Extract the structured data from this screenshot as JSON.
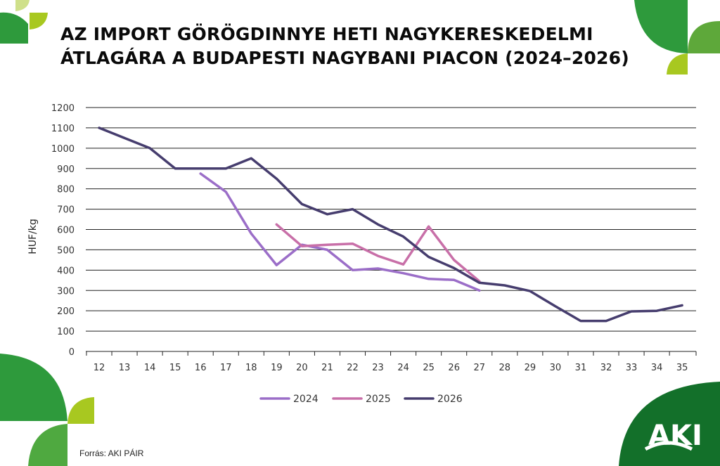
{
  "title_lines": [
    "AZ IMPORT GÖRÖGDINNYE HETI NAGYKERESKEDELMI",
    "ÁTLAGÁRA A BUDAPESTI NAGYBANI PIACON (2024–2026)"
  ],
  "source": "Forrás: AKI PÁIR",
  "logo_text": "AKI",
  "colors": {
    "dark_green": "#13702a",
    "green": "#2e9a3c",
    "mid_green": "#4fa940",
    "lime": "#a8c820",
    "grid": "#222222"
  },
  "chart_data": {
    "type": "line",
    "xlabel": "",
    "ylabel": "HUF/kg",
    "ylim": [
      0,
      1200
    ],
    "yticks": [
      0,
      100,
      200,
      300,
      400,
      500,
      600,
      700,
      800,
      900,
      1000,
      1100,
      1200
    ],
    "categories": [
      "12",
      "13",
      "14",
      "15",
      "16",
      "17",
      "18",
      "19",
      "20",
      "21",
      "22",
      "23",
      "24",
      "25",
      "26",
      "27",
      "28",
      "29",
      "30",
      "31",
      "32",
      "33",
      "34",
      "35"
    ],
    "grid": true,
    "legend_position": "bottom",
    "series": [
      {
        "name": "2024",
        "color": "#9b6ec8",
        "values": [
          null,
          null,
          null,
          null,
          875,
          785,
          580,
          425,
          525,
          500,
          400,
          408,
          385,
          357,
          352,
          300,
          null,
          null,
          null,
          null,
          null,
          null,
          null,
          null
        ]
      },
      {
        "name": "2025",
        "color": "#c86fa8",
        "values": [
          null,
          null,
          null,
          null,
          null,
          null,
          null,
          625,
          518,
          525,
          530,
          470,
          428,
          615,
          450,
          345,
          null,
          null,
          null,
          null,
          null,
          null,
          null,
          null
        ]
      },
      {
        "name": "2026",
        "color": "#463d6e",
        "values": [
          1100,
          1050,
          1000,
          900,
          900,
          900,
          950,
          850,
          725,
          675,
          700,
          625,
          565,
          465,
          410,
          338,
          325,
          297,
          222,
          150,
          150,
          197,
          200,
          227
        ]
      }
    ]
  }
}
